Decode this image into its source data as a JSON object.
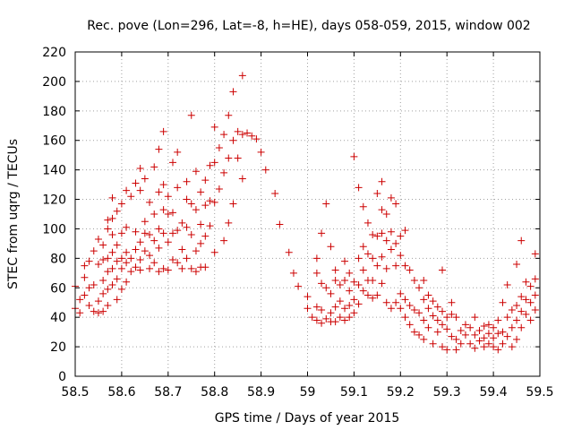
{
  "chart_data": {
    "type": "scatter",
    "title": "Rec. pove (Lon=296, Lat=-8, h=HE), days 058-059, 2015, window 002",
    "xlabel": "GPS time / Days of year 2015",
    "ylabel": "STEC from uqrg / TECUs",
    "xlim": [
      58.5,
      59.5
    ],
    "ylim": [
      0,
      220
    ],
    "xticks": [
      "58.5",
      "58.6",
      "58.7",
      "58.8",
      "58.9",
      "59",
      "59.1",
      "59.2",
      "59.3",
      "59.4",
      "59.5"
    ],
    "yticks": [
      "0",
      "20",
      "40",
      "60",
      "80",
      "100",
      "120",
      "140",
      "160",
      "180",
      "200",
      "220"
    ],
    "grid": true,
    "marker": "+",
    "color": "#cc0000",
    "series": [
      {
        "name": "STEC",
        "points": [
          [
            58.5,
            61
          ],
          [
            58.5,
            46
          ],
          [
            58.51,
            43
          ],
          [
            58.51,
            52
          ],
          [
            58.52,
            75
          ],
          [
            58.52,
            67
          ],
          [
            58.52,
            55
          ],
          [
            58.53,
            48
          ],
          [
            58.53,
            60
          ],
          [
            58.53,
            78
          ],
          [
            58.54,
            85
          ],
          [
            58.54,
            62
          ],
          [
            58.54,
            44
          ],
          [
            58.55,
            93
          ],
          [
            58.55,
            76
          ],
          [
            58.55,
            51
          ],
          [
            58.55,
            43
          ],
          [
            58.56,
            89
          ],
          [
            58.56,
            79
          ],
          [
            58.56,
            65
          ],
          [
            58.56,
            56
          ],
          [
            58.56,
            44
          ],
          [
            58.57,
            106
          ],
          [
            58.57,
            100
          ],
          [
            58.57,
            80
          ],
          [
            58.57,
            71
          ],
          [
            58.57,
            59
          ],
          [
            58.57,
            48
          ],
          [
            58.58,
            121
          ],
          [
            58.58,
            107
          ],
          [
            58.58,
            96
          ],
          [
            58.58,
            84
          ],
          [
            58.58,
            73
          ],
          [
            58.58,
            62
          ],
          [
            58.59,
            112
          ],
          [
            58.59,
            89
          ],
          [
            58.59,
            78
          ],
          [
            58.59,
            66
          ],
          [
            58.59,
            52
          ],
          [
            58.6,
            117
          ],
          [
            58.6,
            97
          ],
          [
            58.6,
            80
          ],
          [
            58.6,
            73
          ],
          [
            58.6,
            59
          ],
          [
            58.61,
            126
          ],
          [
            58.61,
            101
          ],
          [
            58.61,
            84
          ],
          [
            58.61,
            77
          ],
          [
            58.61,
            64
          ],
          [
            58.62,
            122
          ],
          [
            58.62,
            80
          ],
          [
            58.62,
            71
          ],
          [
            58.63,
            131
          ],
          [
            58.63,
            98
          ],
          [
            58.63,
            86
          ],
          [
            58.63,
            74
          ],
          [
            58.64,
            141
          ],
          [
            58.64,
            126
          ],
          [
            58.64,
            91
          ],
          [
            58.64,
            79
          ],
          [
            58.64,
            72
          ],
          [
            58.65,
            134
          ],
          [
            58.65,
            105
          ],
          [
            58.65,
            97
          ],
          [
            58.65,
            85
          ],
          [
            58.66,
            118
          ],
          [
            58.66,
            96
          ],
          [
            58.66,
            82
          ],
          [
            58.66,
            73
          ],
          [
            58.67,
            142
          ],
          [
            58.67,
            110
          ],
          [
            58.67,
            92
          ],
          [
            58.67,
            77
          ],
          [
            58.68,
            154
          ],
          [
            58.68,
            125
          ],
          [
            58.68,
            100
          ],
          [
            58.68,
            87
          ],
          [
            58.68,
            71
          ],
          [
            58.69,
            166
          ],
          [
            58.69,
            130
          ],
          [
            58.69,
            113
          ],
          [
            58.69,
            97
          ],
          [
            58.69,
            73
          ],
          [
            58.7,
            122
          ],
          [
            58.7,
            110
          ],
          [
            58.7,
            91
          ],
          [
            58.7,
            72
          ],
          [
            58.71,
            145
          ],
          [
            58.71,
            111
          ],
          [
            58.71,
            97
          ],
          [
            58.71,
            79
          ],
          [
            58.72,
            152
          ],
          [
            58.72,
            128
          ],
          [
            58.72,
            99
          ],
          [
            58.72,
            77
          ],
          [
            58.73,
            104
          ],
          [
            58.73,
            86
          ],
          [
            58.73,
            73
          ],
          [
            58.74,
            132
          ],
          [
            58.74,
            120
          ],
          [
            58.74,
            101
          ],
          [
            58.74,
            80
          ],
          [
            58.75,
            177
          ],
          [
            58.75,
            117
          ],
          [
            58.75,
            96
          ],
          [
            58.75,
            73
          ],
          [
            58.76,
            139
          ],
          [
            58.76,
            113
          ],
          [
            58.76,
            85
          ],
          [
            58.76,
            71
          ],
          [
            58.77,
            125
          ],
          [
            58.77,
            103
          ],
          [
            58.77,
            90
          ],
          [
            58.77,
            74
          ],
          [
            58.78,
            133
          ],
          [
            58.78,
            116
          ],
          [
            58.78,
            95
          ],
          [
            58.78,
            74
          ],
          [
            58.79,
            143
          ],
          [
            58.79,
            119
          ],
          [
            58.79,
            102
          ],
          [
            58.8,
            169
          ],
          [
            58.8,
            145
          ],
          [
            58.8,
            118
          ],
          [
            58.8,
            84
          ],
          [
            58.81,
            155
          ],
          [
            58.81,
            127
          ],
          [
            58.82,
            164
          ],
          [
            58.82,
            138
          ],
          [
            58.82,
            92
          ],
          [
            58.83,
            177
          ],
          [
            58.83,
            148
          ],
          [
            58.83,
            104
          ],
          [
            58.84,
            193
          ],
          [
            58.84,
            160
          ],
          [
            58.84,
            117
          ],
          [
            58.85,
            166
          ],
          [
            58.85,
            148
          ],
          [
            58.86,
            204
          ],
          [
            58.86,
            164
          ],
          [
            58.86,
            134
          ],
          [
            58.87,
            165
          ],
          [
            58.88,
            163
          ],
          [
            58.89,
            161
          ],
          [
            58.9,
            152
          ],
          [
            58.91,
            140
          ],
          [
            58.93,
            124
          ],
          [
            58.94,
            103
          ],
          [
            58.96,
            84
          ],
          [
            58.97,
            70
          ],
          [
            58.98,
            61
          ],
          [
            59.0,
            54
          ],
          [
            59.0,
            46
          ],
          [
            59.01,
            40
          ],
          [
            59.02,
            80
          ],
          [
            59.02,
            70
          ],
          [
            59.02,
            47
          ],
          [
            59.02,
            38
          ],
          [
            59.03,
            97
          ],
          [
            59.03,
            63
          ],
          [
            59.03,
            45
          ],
          [
            59.03,
            36
          ],
          [
            59.04,
            117
          ],
          [
            59.04,
            60
          ],
          [
            59.04,
            39
          ],
          [
            59.05,
            88
          ],
          [
            59.05,
            56
          ],
          [
            59.05,
            43
          ],
          [
            59.05,
            37
          ],
          [
            59.06,
            72
          ],
          [
            59.06,
            65
          ],
          [
            59.06,
            47
          ],
          [
            59.06,
            37
          ],
          [
            59.07,
            62
          ],
          [
            59.07,
            51
          ],
          [
            59.07,
            40
          ],
          [
            59.08,
            78
          ],
          [
            59.08,
            65
          ],
          [
            59.08,
            46
          ],
          [
            59.08,
            38
          ],
          [
            59.09,
            70
          ],
          [
            59.09,
            58
          ],
          [
            59.09,
            48
          ],
          [
            59.09,
            40
          ],
          [
            59.1,
            149
          ],
          [
            59.1,
            64
          ],
          [
            59.1,
            52
          ],
          [
            59.1,
            43
          ],
          [
            59.11,
            128
          ],
          [
            59.11,
            80
          ],
          [
            59.11,
            62
          ],
          [
            59.11,
            49
          ],
          [
            59.12,
            115
          ],
          [
            59.12,
            88
          ],
          [
            59.12,
            72
          ],
          [
            59.12,
            58
          ],
          [
            59.13,
            104
          ],
          [
            59.13,
            83
          ],
          [
            59.13,
            65
          ],
          [
            59.13,
            55
          ],
          [
            59.14,
            96
          ],
          [
            59.14,
            80
          ],
          [
            59.14,
            65
          ],
          [
            59.14,
            53
          ],
          [
            59.15,
            124
          ],
          [
            59.15,
            95
          ],
          [
            59.15,
            75
          ],
          [
            59.15,
            55
          ],
          [
            59.16,
            132
          ],
          [
            59.16,
            113
          ],
          [
            59.16,
            97
          ],
          [
            59.16,
            81
          ],
          [
            59.16,
            63
          ],
          [
            59.17,
            110
          ],
          [
            59.17,
            92
          ],
          [
            59.17,
            73
          ],
          [
            59.17,
            50
          ],
          [
            59.18,
            121
          ],
          [
            59.18,
            98
          ],
          [
            59.18,
            86
          ],
          [
            59.18,
            46
          ],
          [
            59.19,
            117
          ],
          [
            59.19,
            90
          ],
          [
            59.19,
            75
          ],
          [
            59.19,
            50
          ],
          [
            59.2,
            95
          ],
          [
            59.2,
            82
          ],
          [
            59.2,
            56
          ],
          [
            59.2,
            46
          ],
          [
            59.21,
            99
          ],
          [
            59.21,
            75
          ],
          [
            59.21,
            52
          ],
          [
            59.21,
            40
          ],
          [
            59.22,
            72
          ],
          [
            59.22,
            48
          ],
          [
            59.22,
            35
          ],
          [
            59.23,
            65
          ],
          [
            59.23,
            45
          ],
          [
            59.23,
            30
          ],
          [
            59.24,
            60
          ],
          [
            59.24,
            43
          ],
          [
            59.24,
            28
          ],
          [
            59.25,
            65
          ],
          [
            59.25,
            52
          ],
          [
            59.25,
            38
          ],
          [
            59.25,
            25
          ],
          [
            59.26,
            55
          ],
          [
            59.26,
            46
          ],
          [
            59.26,
            33
          ],
          [
            59.27,
            51
          ],
          [
            59.27,
            41
          ],
          [
            59.27,
            22
          ],
          [
            59.28,
            47
          ],
          [
            59.28,
            38
          ],
          [
            59.28,
            30
          ],
          [
            59.29,
            72
          ],
          [
            59.29,
            44
          ],
          [
            59.29,
            35
          ],
          [
            59.29,
            20
          ],
          [
            59.3,
            40
          ],
          [
            59.3,
            32
          ],
          [
            59.3,
            18
          ],
          [
            59.31,
            50
          ],
          [
            59.31,
            42
          ],
          [
            59.31,
            27
          ],
          [
            59.32,
            40
          ],
          [
            59.32,
            25
          ],
          [
            59.32,
            18
          ],
          [
            59.33,
            31
          ],
          [
            59.33,
            22
          ],
          [
            59.34,
            35
          ],
          [
            59.34,
            28
          ],
          [
            59.35,
            33
          ],
          [
            59.35,
            22
          ],
          [
            59.36,
            40
          ],
          [
            59.36,
            28
          ],
          [
            59.36,
            19
          ],
          [
            59.37,
            31
          ],
          [
            59.37,
            24
          ],
          [
            59.38,
            34
          ],
          [
            59.38,
            26
          ],
          [
            59.38,
            20
          ],
          [
            59.39,
            35
          ],
          [
            59.39,
            29
          ],
          [
            59.39,
            22
          ],
          [
            59.4,
            33
          ],
          [
            59.4,
            26
          ],
          [
            59.4,
            20
          ],
          [
            59.41,
            38
          ],
          [
            59.41,
            29
          ],
          [
            59.41,
            18
          ],
          [
            59.42,
            50
          ],
          [
            59.42,
            30
          ],
          [
            59.42,
            22
          ],
          [
            59.43,
            62
          ],
          [
            59.43,
            40
          ],
          [
            59.43,
            27
          ],
          [
            59.44,
            45
          ],
          [
            59.44,
            33
          ],
          [
            59.44,
            20
          ],
          [
            59.45,
            76
          ],
          [
            59.45,
            48
          ],
          [
            59.45,
            38
          ],
          [
            59.45,
            25
          ],
          [
            59.46,
            92
          ],
          [
            59.46,
            54
          ],
          [
            59.46,
            44
          ],
          [
            59.46,
            33
          ],
          [
            59.47,
            64
          ],
          [
            59.47,
            52
          ],
          [
            59.47,
            42
          ],
          [
            59.48,
            61
          ],
          [
            59.48,
            50
          ],
          [
            59.48,
            38
          ],
          [
            59.49,
            83
          ],
          [
            59.49,
            66
          ],
          [
            59.49,
            55
          ],
          [
            59.49,
            45
          ]
        ]
      }
    ]
  }
}
